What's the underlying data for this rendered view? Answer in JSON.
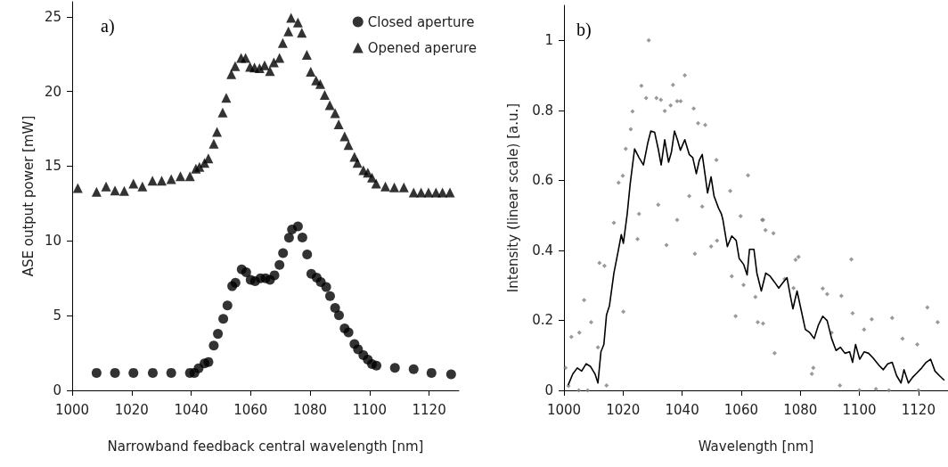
{
  "chart_data": [
    {
      "type": "scatter",
      "title": "a)",
      "xlabel": "Narrowband feedback central wavelength [nm]",
      "ylabel": "ASE output power [mW]",
      "xlim": [
        1000,
        1130
      ],
      "xticks": [
        1000,
        1020,
        1040,
        1060,
        1080,
        1100,
        1120
      ],
      "ylim": [
        0,
        26
      ],
      "yticks": [
        0,
        5,
        10,
        15,
        20,
        25
      ],
      "grid": false,
      "legend": "top right",
      "series": [
        {
          "name": "Closed aperture",
          "color": "#000000",
          "marker": "circle",
          "x": [
            1008.2,
            1014.4,
            1020.6,
            1027.1,
            1033.3,
            1039.6,
            1041.1,
            1042.5,
            1044.5,
            1045.8,
            1047.6,
            1049,
            1050.8,
            1052.2,
            1053.8,
            1054.9,
            1057,
            1058.5,
            1060,
            1061.5,
            1063.3,
            1065,
            1066.5,
            1068,
            1069.7,
            1070.9,
            1072.9,
            1073.9,
            1075.9,
            1077.4,
            1079,
            1080.4,
            1082.2,
            1083.6,
            1085.4,
            1086.7,
            1088.4,
            1089.7,
            1091.6,
            1092.9,
            1094.9,
            1096.1,
            1097.9,
            1099.4,
            1100.8,
            1102.3,
            1108.5,
            1114.8,
            1120.8,
            1127.4
          ],
          "values": [
            1.17,
            1.17,
            1.17,
            1.17,
            1.17,
            1.17,
            1.17,
            1.47,
            1.8,
            1.9,
            2.99,
            3.78,
            4.79,
            5.68,
            6.97,
            7.2,
            8.09,
            7.9,
            7.4,
            7.3,
            7.5,
            7.5,
            7.4,
            7.7,
            8.39,
            9.19,
            10.21,
            10.77,
            10.97,
            10.23,
            9.09,
            7.8,
            7.54,
            7.24,
            6.91,
            6.31,
            5.52,
            5.03,
            4.14,
            3.88,
            3.1,
            2.75,
            2.36,
            2.06,
            1.76,
            1.66,
            1.5,
            1.41,
            1.17,
            1.07
          ]
        },
        {
          "name": "Opened aperure",
          "color": "#000000",
          "marker": "triangle",
          "x": [
            1001.9,
            1008.2,
            1011.4,
            1014.4,
            1017.5,
            1020.6,
            1023.6,
            1027,
            1030.1,
            1033.3,
            1036.4,
            1039.6,
            1041.6,
            1042.8,
            1044.5,
            1045.8,
            1047.6,
            1048.7,
            1050.6,
            1051.8,
            1053.5,
            1054.8,
            1056.8,
            1058.3,
            1059.8,
            1061.3,
            1063,
            1064.7,
            1066.5,
            1067.8,
            1069.7,
            1070.8,
            1072.7,
            1073.6,
            1075.9,
            1077.2,
            1078.9,
            1080.2,
            1082,
            1083.4,
            1084.9,
            1086.6,
            1088.4,
            1089.6,
            1091.6,
            1092.9,
            1094.9,
            1095.9,
            1097.9,
            1099.4,
            1100.8,
            1102.2,
            1105.3,
            1108.3,
            1111.5,
            1114.8,
            1117.3,
            1119.8,
            1122.3,
            1124.5,
            1127
          ],
          "values": [
            13.54,
            13.28,
            13.64,
            13.38,
            13.34,
            13.84,
            13.64,
            14.03,
            14.03,
            14.13,
            14.33,
            14.33,
            14.83,
            14.96,
            15.22,
            15.52,
            16.51,
            17.3,
            18.59,
            19.58,
            21.16,
            21.69,
            22.25,
            22.25,
            21.65,
            21.6,
            21.56,
            21.75,
            21.36,
            21.95,
            22.25,
            23.24,
            24.02,
            24.92,
            24.62,
            23.93,
            22.45,
            21.32,
            20.73,
            20.5,
            19.77,
            19.08,
            18.55,
            17.8,
            17,
            16.41,
            15.62,
            15.22,
            14.73,
            14.57,
            14.23,
            13.84,
            13.64,
            13.58,
            13.58,
            13.24,
            13.24,
            13.24,
            13.24,
            13.24,
            13.24
          ]
        }
      ]
    },
    {
      "type": "line",
      "title": "b)",
      "xlabel": "Wavelength [nm]",
      "ylabel": "Intensity (linear scale) [a.u.]",
      "xlim": [
        1000,
        1130
      ],
      "xticks": [
        1000,
        1020,
        1040,
        1060,
        1080,
        1100,
        1120
      ],
      "ylim": [
        0,
        1.1
      ],
      "yticks": [
        0,
        0.2,
        0.4,
        0.6,
        0.8,
        1
      ],
      "grid": false,
      "series": [
        {
          "type": "scatter",
          "color": "#808080",
          "marker": "diamond",
          "x": [
            1000.5,
            1001.5,
            1002.5,
            1005,
            1005.2,
            1006.8,
            1008,
            1009.2,
            1011.5,
            1012,
            1013.7,
            1014.4,
            1016.9,
            1018.5,
            1019.9,
            1020.1,
            1020.9,
            1022.6,
            1023.2,
            1024.9,
            1025.4,
            1026.2,
            1027.8,
            1028.7,
            1031.3,
            1031.9,
            1032.8,
            1034.1,
            1034.7,
            1036.1,
            1036.9,
            1038.3,
            1038.3,
            1039.5,
            1040.9,
            1042.4,
            1043.9,
            1044.3,
            1045.4,
            1046.8,
            1047.8,
            1049.8,
            1051.6,
            1051.8,
            1056.3,
            1056.8,
            1058.1,
            1059.8,
            1060.8,
            1062.3,
            1064.8,
            1065.6,
            1067.1,
            1067.4,
            1067.4,
            1068.2,
            1070.9,
            1071.3,
            1074.7,
            1077.7,
            1078.4,
            1079.4,
            1083.9,
            1084.4,
            1087.6,
            1089.1,
            1090.6,
            1093.4,
            1093.9,
            1097.3,
            1097.7,
            1100,
            1101.6,
            1104.2,
            1105.6,
            1110,
            1111.1,
            1114.6,
            1119.6,
            1120,
            1123,
            1126.5
          ],
          "values": [
            0.064,
            0.013,
            0.153,
            0,
            0.165,
            0.258,
            0,
            0.195,
            0.123,
            0.364,
            0.356,
            0.014,
            0.479,
            0.593,
            0.613,
            0.225,
            0.69,
            0.746,
            0.797,
            0.432,
            0.504,
            0.87,
            0.835,
            1.0,
            0.835,
            0.53,
            0.83,
            0.798,
            0.415,
            0.814,
            0.873,
            0.826,
            0.487,
            0.826,
            0.9,
            0.555,
            0.805,
            0.39,
            0.763,
            0.525,
            0.758,
            0.411,
            0.658,
            0.428,
            0.57,
            0.326,
            0.212,
            0.498,
            0.301,
            0.614,
            0.267,
            0.195,
            0.487,
            0.191,
            0.487,
            0.458,
            0.449,
            0.106,
            0.318,
            0.292,
            0.373,
            0.381,
            0.047,
            0.064,
            0.291,
            0.275,
            0.165,
            0.014,
            0.27,
            0.374,
            0.22,
            0,
            0.174,
            0.203,
            0.004,
            0,
            0.207,
            0.148,
            0.131,
            0,
            0.237,
            0.195
          ]
        },
        {
          "color": "#000000",
          "marker": "none",
          "line_style": "solid",
          "x": [
            1001.5,
            1003,
            1004.5,
            1006,
            1007.5,
            1009,
            1010.5,
            1011.5,
            1012.5,
            1013.5,
            1014.4,
            1015.4,
            1016.9,
            1018.4,
            1019.4,
            1020.1,
            1021.4,
            1022.4,
            1023.9,
            1025.4,
            1026.9,
            1028.4,
            1029.4,
            1030.7,
            1031.9,
            1032.9,
            1034.1,
            1035.4,
            1036.4,
            1037.4,
            1038.4,
            1039.4,
            1040.9,
            1042.4,
            1043.6,
            1044.8,
            1045.8,
            1046.8,
            1047.8,
            1048.6,
            1049.8,
            1050.8,
            1052.3,
            1053.3,
            1053.8,
            1055.3,
            1056.8,
            1058.3,
            1059.3,
            1060.8,
            1062,
            1062.8,
            1064.3,
            1065.3,
            1066.8,
            1068.3,
            1069.8,
            1071.3,
            1072.7,
            1074.2,
            1075.5,
            1076.7,
            1077.5,
            1078.9,
            1080.2,
            1081.7,
            1083.2,
            1084.7,
            1086.1,
            1087.6,
            1089.1,
            1090.6,
            1092.1,
            1093.6,
            1095.1,
            1096.7,
            1097.7,
            1098.7,
            1100.1,
            1101.6,
            1103.1,
            1104.6,
            1106.6,
            1108.1,
            1109.6,
            1111.1,
            1112.6,
            1114.1,
            1115.1,
            1116.6,
            1118.1,
            1119.6,
            1121.1,
            1122.6,
            1124.1,
            1125.6,
            1127.1,
            1128.6
          ],
          "values": [
            0.017,
            0.047,
            0.064,
            0.055,
            0.076,
            0.068,
            0.047,
            0.021,
            0.11,
            0.131,
            0.216,
            0.242,
            0.335,
            0.4,
            0.445,
            0.42,
            0.504,
            0.589,
            0.69,
            0.665,
            0.644,
            0.708,
            0.741,
            0.737,
            0.69,
            0.644,
            0.716,
            0.652,
            0.682,
            0.741,
            0.716,
            0.686,
            0.716,
            0.674,
            0.665,
            0.619,
            0.657,
            0.674,
            0.614,
            0.564,
            0.61,
            0.555,
            0.521,
            0.504,
            0.487,
            0.411,
            0.441,
            0.428,
            0.377,
            0.36,
            0.33,
            0.403,
            0.403,
            0.335,
            0.284,
            0.335,
            0.326,
            0.309,
            0.292,
            0.309,
            0.322,
            0.267,
            0.233,
            0.284,
            0.233,
            0.174,
            0.165,
            0.148,
            0.186,
            0.212,
            0.199,
            0.148,
            0.114,
            0.123,
            0.106,
            0.11,
            0.08,
            0.131,
            0.089,
            0.11,
            0.106,
            0.093,
            0.072,
            0.059,
            0.076,
            0.08,
            0.042,
            0.021,
            0.059,
            0.021,
            0.038,
            0.051,
            0.064,
            0.08,
            0.089,
            0.055,
            0.042,
            0.03
          ]
        }
      ]
    }
  ]
}
